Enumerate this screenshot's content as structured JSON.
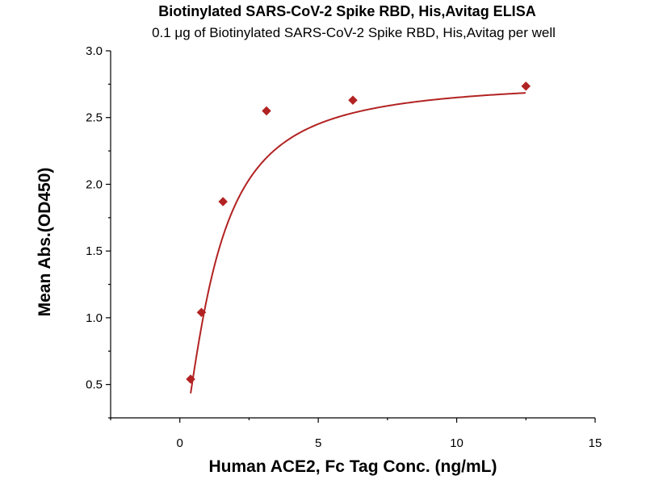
{
  "chart_data": {
    "type": "scatter",
    "title": "Biotinylated SARS-CoV-2 Spike RBD, His,Avitag ELISA",
    "subtitle": "0.1 μg of Biotinylated SARS-CoV-2 Spike RBD, His,Avitag per well",
    "xlabel": "Human ACE2, Fc Tag Conc. (ng/mL)",
    "ylabel": "Mean Abs.(OD450)",
    "xlim": [
      -2.5,
      15
    ],
    "ylim": [
      0.25,
      3.0
    ],
    "x_ticks": [
      0,
      5,
      10,
      15
    ],
    "y_ticks": [
      0.5,
      1.0,
      1.5,
      2.0,
      2.5,
      3.0
    ],
    "x_tick_labels": [
      "0",
      "5",
      "10",
      "15"
    ],
    "y_tick_labels": [
      "0.5",
      "1.0",
      "1.5",
      "2.0",
      "2.5",
      "3.0"
    ],
    "grid": false,
    "series": [
      {
        "marker": "diamond",
        "color": "#b22222",
        "x": [
          0.39,
          0.78,
          1.56,
          3.13,
          6.25,
          12.5
        ],
        "y": [
          0.54,
          1.04,
          1.87,
          2.55,
          2.63,
          2.735
        ],
        "fit_curve": true
      }
    ]
  }
}
